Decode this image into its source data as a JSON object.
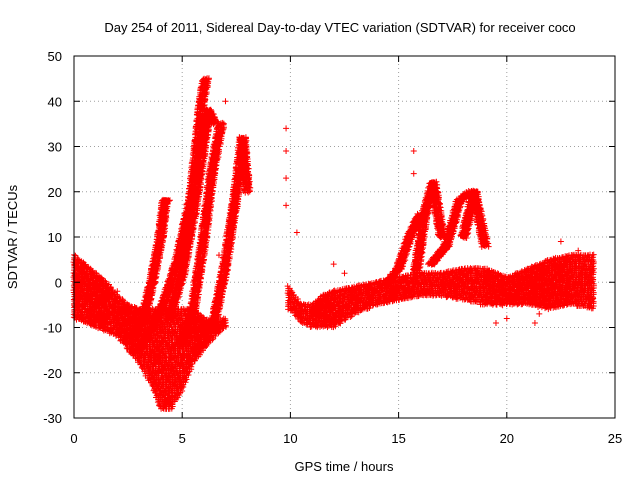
{
  "chart_data": {
    "type": "scatter",
    "title": "Day 254 of 2011, Sidereal Day-to-day VTEC variation (SDTVAR) for receiver coco",
    "xlabel": "GPS time / hours",
    "ylabel": "SDTVAR / TECUs",
    "xlim": [
      0,
      25
    ],
    "ylim": [
      -30,
      50
    ],
    "xticks": [
      0,
      5,
      10,
      15,
      20,
      25
    ],
    "yticks": [
      -30,
      -20,
      -10,
      0,
      10,
      20,
      30,
      40,
      50
    ],
    "grid": true,
    "marker": "+",
    "color": "#ff0000",
    "series": [
      {
        "name": "SDTVAR",
        "description": "dense band of satellite tracks",
        "bands": [
          {
            "x": [
              0.0,
              0.5,
              1.0,
              1.5,
              2.0,
              2.5,
              3.0,
              3.5,
              4.0,
              4.5,
              5.0,
              5.5,
              6.0,
              6.5,
              7.0
            ],
            "ymin": [
              -8,
              -9,
              -10,
              -11,
              -12,
              -15,
              -18,
              -22,
              -28,
              -28,
              -24,
              -18,
              -15,
              -12,
              -10
            ],
            "ymax": [
              6,
              4,
              2,
              0,
              -3,
              -5,
              -6,
              -6,
              -6,
              -6,
              -6,
              -6,
              -8,
              -9,
              -8
            ]
          },
          {
            "x": [
              9.9,
              10.2,
              10.5,
              11.0,
              11.5,
              12.0,
              13.0,
              14.0,
              15.0,
              16.0,
              17.0,
              18.0,
              19.0,
              20.0,
              21.0,
              22.0,
              23.0,
              24.0
            ],
            "ymin": [
              -6,
              -7,
              -9,
              -10,
              -10,
              -10,
              -7,
              -5,
              -4,
              -3,
              -3,
              -4,
              -5,
              -5,
              -5,
              -6,
              -5,
              -6
            ],
            "ymax": [
              -1,
              -3,
              -5,
              -5,
              -3,
              -2,
              -1,
              0,
              1,
              2,
              2,
              3,
              3,
              1,
              3,
              5,
              6,
              6
            ]
          }
        ],
        "arcs": [
          {
            "x": [
              2.8,
              3.2,
              3.6,
              4.0,
              4.2,
              4.3
            ],
            "y": [
              -12,
              -8,
              0,
              10,
              18,
              18
            ]
          },
          {
            "x": [
              3.0,
              3.6,
              4.2,
              4.8,
              5.4,
              5.7,
              5.9,
              6.1
            ],
            "y": [
              -15,
              -10,
              -4,
              5,
              18,
              30,
              40,
              45
            ]
          },
          {
            "x": [
              4.4,
              5.0,
              5.5,
              5.9,
              6.2,
              6.5
            ],
            "y": [
              -8,
              2,
              15,
              28,
              38,
              35
            ]
          },
          {
            "x": [
              5.0,
              5.5,
              6.0,
              6.4,
              6.8
            ],
            "y": [
              -14,
              -6,
              10,
              25,
              35
            ]
          },
          {
            "x": [
              6.0,
              6.5,
              7.0,
              7.5,
              7.8,
              8.0
            ],
            "y": [
              -12,
              -8,
              4,
              20,
              32,
              20
            ]
          },
          {
            "x": [
              14.5,
              15.0,
              15.5,
              16.0
            ],
            "y": [
              0,
              3,
              10,
              15
            ]
          },
          {
            "x": [
              15.8,
              16.2,
              16.6,
              17.0
            ],
            "y": [
              2,
              15,
              22,
              10
            ]
          },
          {
            "x": [
              16.5,
              17.2,
              17.8,
              18.3
            ],
            "y": [
              4,
              8,
              18,
              20
            ]
          },
          {
            "x": [
              18.0,
              18.5,
              19.0
            ],
            "y": [
              10,
              20,
              8
            ]
          }
        ],
        "outliers": [
          {
            "x": 2.0,
            "y": -2
          },
          {
            "x": 7.0,
            "y": 40
          },
          {
            "x": 6.7,
            "y": 6
          },
          {
            "x": 9.8,
            "y": 34
          },
          {
            "x": 9.8,
            "y": 29
          },
          {
            "x": 9.8,
            "y": 23
          },
          {
            "x": 9.8,
            "y": 17
          },
          {
            "x": 10.3,
            "y": 11
          },
          {
            "x": 12.0,
            "y": 4
          },
          {
            "x": 12.5,
            "y": 2
          },
          {
            "x": 15.7,
            "y": 29
          },
          {
            "x": 15.7,
            "y": 24
          },
          {
            "x": 18.3,
            "y": 16
          },
          {
            "x": 19.0,
            "y": 9
          },
          {
            "x": 19.5,
            "y": -9
          },
          {
            "x": 20.0,
            "y": -8
          },
          {
            "x": 21.3,
            "y": -9
          },
          {
            "x": 21.5,
            "y": -7
          },
          {
            "x": 22.5,
            "y": 9
          },
          {
            "x": 23.3,
            "y": 7
          }
        ]
      }
    ]
  }
}
